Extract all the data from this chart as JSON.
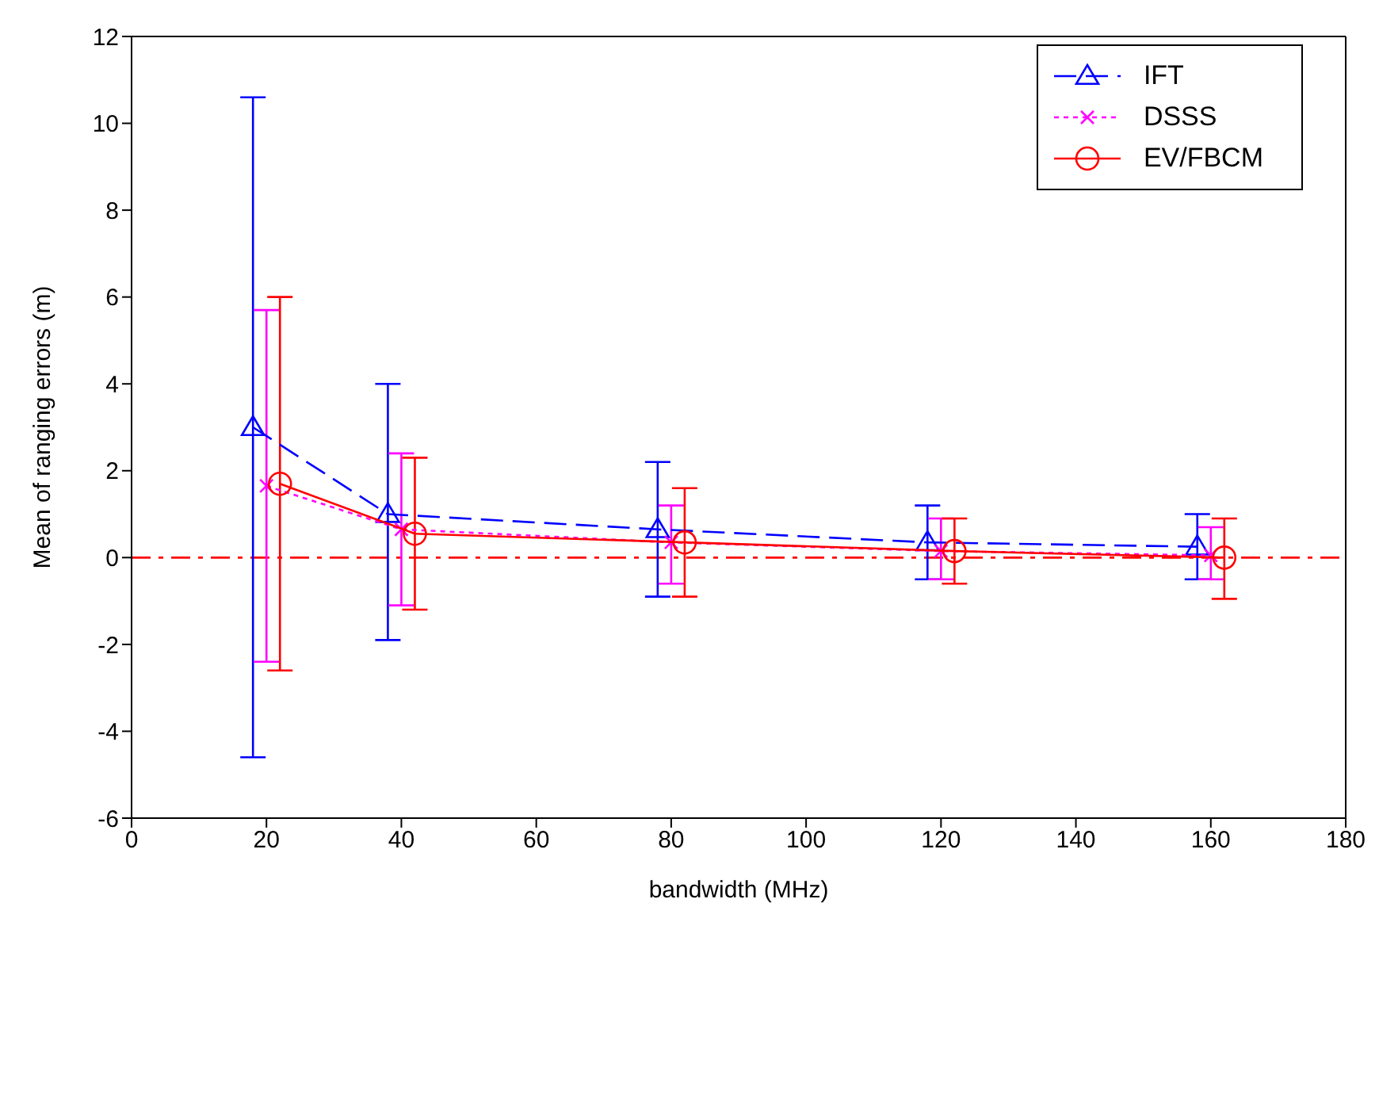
{
  "chart_data": {
    "type": "line",
    "xlabel": "bandwidth (MHz)",
    "ylabel": "Mean of ranging errors (m)",
    "xlim": [
      0,
      180
    ],
    "xticks": [
      0,
      20,
      40,
      60,
      80,
      100,
      120,
      140,
      160,
      180
    ],
    "ylim": [
      -6,
      12
    ],
    "yticks": [
      -6,
      -4,
      -2,
      0,
      2,
      4,
      6,
      8,
      10,
      12
    ],
    "legend": "top right",
    "ref_lines": [
      {
        "axis": "y",
        "value": 0,
        "color": "#ff0000",
        "line_style": "dashdot"
      }
    ],
    "series": [
      {
        "name": "IFT",
        "color": "#0000ff",
        "marker": "triangle",
        "line_style": "dashed",
        "x": [
          18,
          38,
          78,
          118,
          158
        ],
        "values": [
          3.0,
          1.0,
          0.65,
          0.35,
          0.25
        ],
        "errors": [
          [
            -4.6,
            10.6
          ],
          [
            -1.9,
            4.0
          ],
          [
            -0.9,
            2.2
          ],
          [
            -0.5,
            1.2
          ],
          [
            -0.5,
            1.0
          ]
        ]
      },
      {
        "name": "DSSS",
        "color": "#ff00ff",
        "marker": "cross",
        "line_style": "dotted",
        "x": [
          20,
          40,
          80,
          120,
          160
        ],
        "values": [
          1.65,
          0.65,
          0.35,
          0.15,
          0.05
        ],
        "errors": [
          [
            -2.4,
            5.7
          ],
          [
            -1.1,
            2.4
          ],
          [
            -0.6,
            1.2
          ],
          [
            -0.5,
            0.9
          ],
          [
            -0.5,
            0.7
          ]
        ]
      },
      {
        "name": "EV/FBCM",
        "color": "#ff0000",
        "marker": "circle",
        "line_style": "solid",
        "x": [
          22,
          42,
          82,
          122,
          162
        ],
        "values": [
          1.7,
          0.55,
          0.35,
          0.15,
          0.0
        ],
        "errors": [
          [
            -2.6,
            6.0
          ],
          [
            -1.2,
            2.3
          ],
          [
            -0.9,
            1.6
          ],
          [
            -0.6,
            0.9
          ],
          [
            -0.95,
            0.9
          ]
        ]
      }
    ]
  }
}
